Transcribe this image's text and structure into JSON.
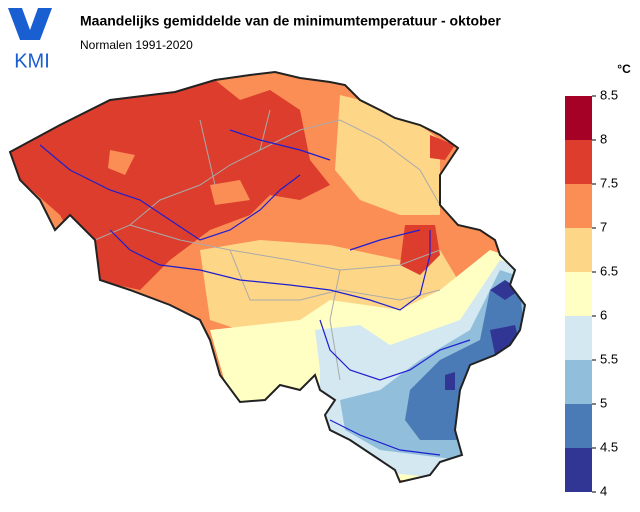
{
  "header": {
    "logo": "KMI",
    "title": "Maandelijks gemiddelde van de minimumtemperatuur - oktober",
    "subtitle": "Normalen 1991-2020"
  },
  "legend": {
    "unit": "°C",
    "ticks": [
      4,
      4.5,
      5,
      5.5,
      6,
      6.5,
      7,
      7.5,
      8,
      8.5
    ],
    "colors": [
      "#313695",
      "#4a7bb7",
      "#91bfdb",
      "#d4e8f2",
      "#ffffc4",
      "#fed688",
      "#fa8e55",
      "#dc3d2d",
      "#a50026"
    ]
  }
}
